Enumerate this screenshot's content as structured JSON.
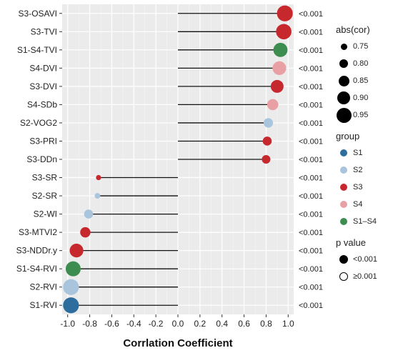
{
  "chart_data": {
    "type": "lollipop",
    "xlabel": "Corrlation Coefficient",
    "xlim": [
      -1.05,
      1.05
    ],
    "x_ticks": [
      "-1.0",
      "-0.8",
      "-0.6",
      "-0.4",
      "-0.2",
      "0.0",
      "0.2",
      "0.4",
      "0.6",
      "0.8",
      "1.0"
    ],
    "x_tick_values": [
      -1.0,
      -0.8,
      -0.6,
      -0.4,
      -0.2,
      0.0,
      0.2,
      0.4,
      0.6,
      0.8,
      1.0
    ],
    "grid": true,
    "legend_position": "right",
    "rows": [
      {
        "label": "S3-OSAVI",
        "value": 0.97,
        "group": "S3",
        "p": "<0.001"
      },
      {
        "label": "S3-TVI",
        "value": 0.96,
        "group": "S3",
        "p": "<0.001"
      },
      {
        "label": "S1-S4-TVI",
        "value": 0.93,
        "group": "S1-S4",
        "p": "<0.001"
      },
      {
        "label": "S4-DVI",
        "value": 0.92,
        "group": "S4",
        "p": "<0.001"
      },
      {
        "label": "S3-DVI",
        "value": 0.9,
        "group": "S3",
        "p": "<0.001"
      },
      {
        "label": "S4-SDb",
        "value": 0.86,
        "group": "S4",
        "p": "<0.001"
      },
      {
        "label": "S2-VOG2",
        "value": 0.82,
        "group": "S2",
        "p": "<0.001"
      },
      {
        "label": "S3-PRI",
        "value": 0.81,
        "group": "S3",
        "p": "<0.001"
      },
      {
        "label": "S3-DDn",
        "value": 0.8,
        "group": "S3",
        "p": "<0.001"
      },
      {
        "label": "S3-SR",
        "value": -0.72,
        "group": "S3",
        "p": "<0.001"
      },
      {
        "label": "S2-SR",
        "value": -0.73,
        "group": "S2",
        "p": "<0.001"
      },
      {
        "label": "S2-WI",
        "value": -0.81,
        "group": "S2",
        "p": "<0.001"
      },
      {
        "label": "S3-MTVI2",
        "value": -0.84,
        "group": "S3",
        "p": "<0.001"
      },
      {
        "label": "S3-NDDr.y",
        "value": -0.92,
        "group": "S3",
        "p": "<0.001"
      },
      {
        "label": "S1-S4-RVI",
        "value": -0.95,
        "group": "S1-S4",
        "p": "<0.001"
      },
      {
        "label": "S2-RVI",
        "value": -0.97,
        "group": "S2",
        "p": "<0.001"
      },
      {
        "label": "S1-RVI",
        "value": -0.97,
        "group": "S1",
        "p": "<0.001"
      }
    ],
    "group_colors": {
      "S1": "#2d6e9e",
      "S2": "#a9c4dd",
      "S3": "#c7282e",
      "S4": "#e9a0a5",
      "S1-S4": "#3d8d50"
    }
  },
  "legends": {
    "size": {
      "title": "abs(cor)",
      "items": [
        {
          "label": "0.75",
          "value": 0.75
        },
        {
          "label": "0.80",
          "value": 0.8
        },
        {
          "label": "0.85",
          "value": 0.85
        },
        {
          "label": "0.90",
          "value": 0.9
        },
        {
          "label": "0.95",
          "value": 0.95
        }
      ]
    },
    "group": {
      "title": "group",
      "items": [
        {
          "label": "S1",
          "color": "#2d6e9e"
        },
        {
          "label": "S2",
          "color": "#a9c4dd"
        },
        {
          "label": "S3",
          "color": "#c7282e"
        },
        {
          "label": "S4",
          "color": "#e9a0a5"
        },
        {
          "label": "S1–S4",
          "color": "#3d8d50"
        }
      ]
    },
    "pvalue": {
      "title": "p value",
      "items": [
        {
          "label": "<0.001",
          "filled": true
        },
        {
          "label": "≥0.001",
          "filled": false
        }
      ]
    }
  }
}
